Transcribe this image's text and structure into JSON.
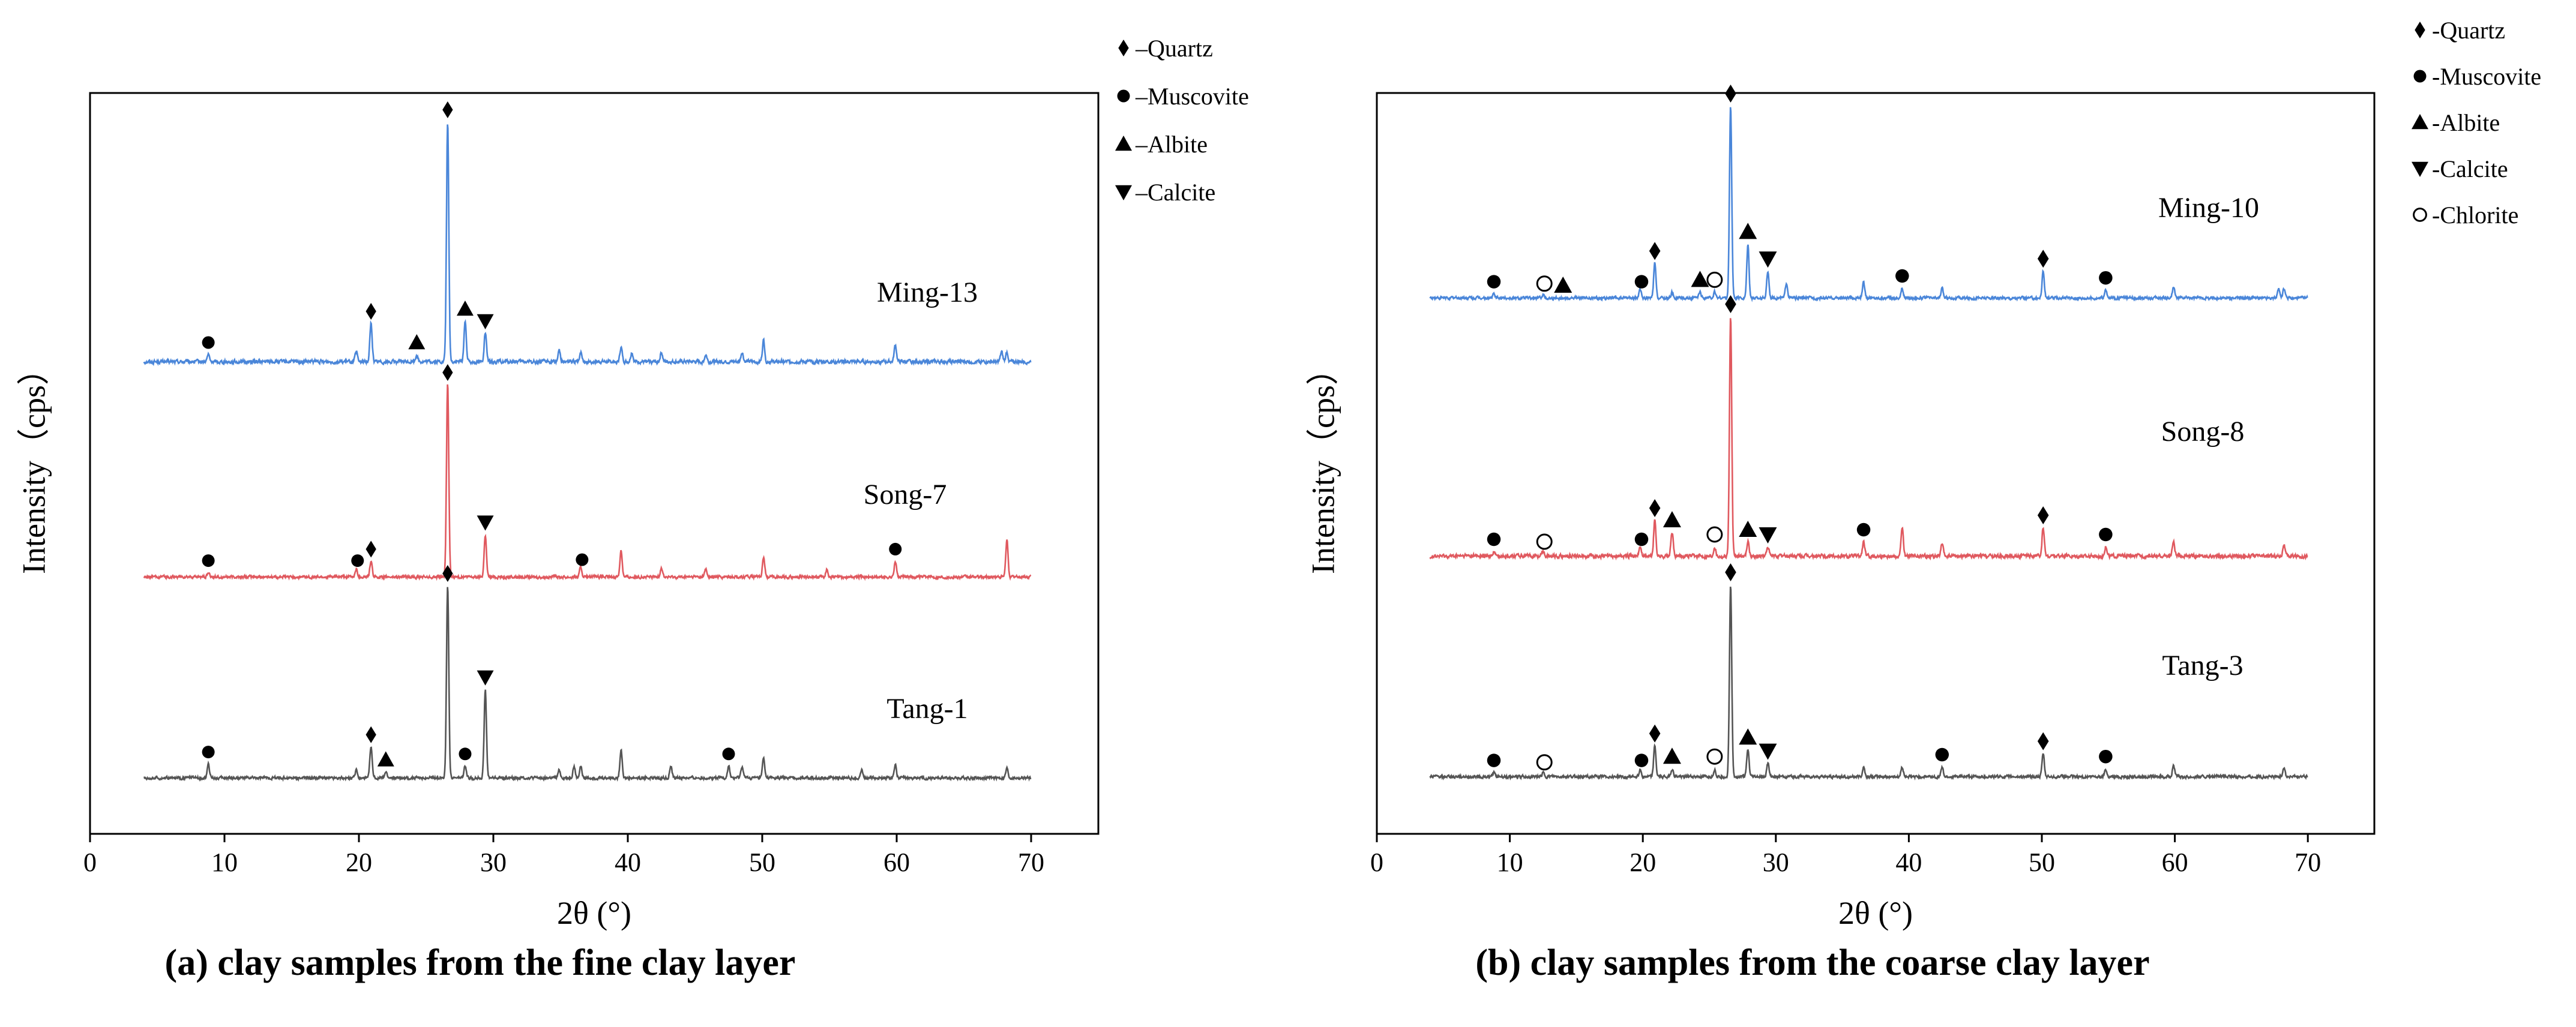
{
  "colors": {
    "series_top": "#4a86d9",
    "series_middle": "#e0595f",
    "series_bottom": "#555555",
    "axis": "#000000"
  },
  "chart_data": [
    {
      "id": "a",
      "type": "line",
      "caption": "(a) clay samples from the fine clay layer",
      "xlabel": "2θ (°)",
      "ylabel": "Intensity（cps）",
      "xlim": [
        0,
        75
      ],
      "xticks": [
        0,
        10,
        20,
        30,
        40,
        50,
        60,
        70
      ],
      "legend": [
        {
          "symbol": "♦",
          "label": "–Quartz",
          "marker": "diamond"
        },
        {
          "symbol": "●",
          "label": "–Muscovite",
          "marker": "circle"
        },
        {
          "symbol": "▲",
          "label": "–Albite",
          "marker": "triangle-up"
        },
        {
          "symbol": "▼",
          "label": "–Calcite",
          "marker": "triangle-down"
        }
      ],
      "series": [
        {
          "name": "Ming-13",
          "color": "#4a86d9",
          "slot": 2,
          "peaks": [
            [
              8.8,
              0.03
            ],
            [
              19.8,
              0.04
            ],
            [
              20.9,
              0.16
            ],
            [
              24.3,
              0.03
            ],
            [
              26.6,
              1.0
            ],
            [
              27.9,
              0.17
            ],
            [
              29.4,
              0.12
            ],
            [
              34.9,
              0.05
            ],
            [
              36.5,
              0.04
            ],
            [
              39.5,
              0.06
            ],
            [
              40.3,
              0.04
            ],
            [
              42.5,
              0.04
            ],
            [
              45.8,
              0.03
            ],
            [
              48.5,
              0.04
            ],
            [
              50.1,
              0.09
            ],
            [
              59.9,
              0.07
            ],
            [
              67.8,
              0.04
            ],
            [
              68.2,
              0.04
            ]
          ],
          "markers": [
            [
              "circle",
              8.8
            ],
            [
              "diamond",
              20.9
            ],
            [
              "triangle-up",
              24.3
            ],
            [
              "diamond",
              26.6
            ],
            [
              "triangle-up",
              27.9
            ],
            [
              "triangle-down",
              29.4
            ]
          ]
        },
        {
          "name": "Song-7",
          "color": "#e0595f",
          "slot": 1,
          "peaks": [
            [
              8.8,
              0.02
            ],
            [
              19.8,
              0.04
            ],
            [
              20.9,
              0.08
            ],
            [
              26.6,
              1.0
            ],
            [
              29.4,
              0.22
            ],
            [
              36.5,
              0.05
            ],
            [
              39.5,
              0.14
            ],
            [
              42.5,
              0.05
            ],
            [
              45.8,
              0.04
            ],
            [
              50.1,
              0.1
            ],
            [
              54.8,
              0.04
            ],
            [
              59.9,
              0.08
            ],
            [
              68.2,
              0.19
            ]
          ],
          "markers": [
            [
              "circle",
              8.8
            ],
            [
              "circle",
              19.9
            ],
            [
              "diamond",
              20.9
            ],
            [
              "diamond",
              26.6
            ],
            [
              "triangle-down",
              29.4
            ],
            [
              "circle",
              36.6
            ],
            [
              "circle",
              59.9
            ]
          ]
        },
        {
          "name": "Tang-1",
          "color": "#555555",
          "slot": 0,
          "peaks": [
            [
              8.8,
              0.07
            ],
            [
              19.8,
              0.04
            ],
            [
              20.9,
              0.16
            ],
            [
              22.0,
              0.03
            ],
            [
              26.6,
              1.0
            ],
            [
              27.9,
              0.06
            ],
            [
              29.4,
              0.46
            ],
            [
              34.9,
              0.04
            ],
            [
              36.0,
              0.06
            ],
            [
              36.5,
              0.06
            ],
            [
              39.5,
              0.15
            ],
            [
              43.2,
              0.06
            ],
            [
              47.5,
              0.06
            ],
            [
              48.5,
              0.06
            ],
            [
              50.1,
              0.1
            ],
            [
              57.4,
              0.04
            ],
            [
              59.9,
              0.07
            ],
            [
              68.2,
              0.05
            ]
          ],
          "markers": [
            [
              "circle",
              8.8
            ],
            [
              "diamond",
              20.9
            ],
            [
              "triangle-up",
              22.0
            ],
            [
              "diamond",
              26.6
            ],
            [
              "circle",
              27.9
            ],
            [
              "triangle-down",
              29.4
            ],
            [
              "circle",
              47.5
            ]
          ]
        }
      ]
    },
    {
      "id": "b",
      "type": "line",
      "caption": "(b) clay samples from the coarse clay layer",
      "xlabel": "2θ (°)",
      "ylabel": "Intensity（cps）",
      "xlim": [
        0,
        75
      ],
      "xticks": [
        0,
        10,
        20,
        30,
        40,
        50,
        60,
        70
      ],
      "legend": [
        {
          "symbol": "♦",
          "label": "-Quartz",
          "marker": "diamond"
        },
        {
          "symbol": "●",
          "label": "-Muscovite",
          "marker": "circle"
        },
        {
          "symbol": "▲",
          "label": "-Albite",
          "marker": "triangle-up"
        },
        {
          "symbol": "▼",
          "label": "-Calcite",
          "marker": "triangle-down"
        },
        {
          "symbol": "○",
          "label": "-Chlorite",
          "marker": "open-circle"
        }
      ],
      "series": [
        {
          "name": "Ming-10",
          "color": "#4a86d9",
          "slot": 2,
          "peaks": [
            [
              8.8,
              0.02
            ],
            [
              12.5,
              0.02
            ],
            [
              19.8,
              0.04
            ],
            [
              20.9,
              0.18
            ],
            [
              22.2,
              0.03
            ],
            [
              24.3,
              0.03
            ],
            [
              25.4,
              0.03
            ],
            [
              26.6,
              1.0
            ],
            [
              27.9,
              0.28
            ],
            [
              29.4,
              0.14
            ],
            [
              30.8,
              0.08
            ],
            [
              36.6,
              0.08
            ],
            [
              39.5,
              0.05
            ],
            [
              42.5,
              0.05
            ],
            [
              50.1,
              0.14
            ],
            [
              54.8,
              0.04
            ],
            [
              59.9,
              0.06
            ],
            [
              67.8,
              0.05
            ],
            [
              68.2,
              0.05
            ]
          ],
          "markers": [
            [
              "circle",
              8.8
            ],
            [
              "open-circle",
              12.6
            ],
            [
              "triangle-up",
              14.0
            ],
            [
              "circle",
              19.9
            ],
            [
              "diamond",
              20.9
            ],
            [
              "triangle-up",
              24.3
            ],
            [
              "open-circle",
              25.4
            ],
            [
              "diamond",
              26.6
            ],
            [
              "triangle-up",
              27.9
            ],
            [
              "triangle-down",
              29.4
            ],
            [
              "circle",
              39.5
            ],
            [
              "diamond",
              50.1
            ],
            [
              "circle",
              54.8
            ]
          ]
        },
        {
          "name": "Song-8",
          "color": "#e0595f",
          "slot": 1,
          "peaks": [
            [
              8.8,
              0.02
            ],
            [
              12.5,
              0.02
            ],
            [
              19.8,
              0.04
            ],
            [
              20.9,
              0.15
            ],
            [
              22.2,
              0.1
            ],
            [
              25.4,
              0.04
            ],
            [
              26.6,
              1.0
            ],
            [
              27.9,
              0.06
            ],
            [
              29.4,
              0.04
            ],
            [
              36.6,
              0.06
            ],
            [
              39.5,
              0.12
            ],
            [
              42.5,
              0.05
            ],
            [
              50.1,
              0.12
            ],
            [
              54.8,
              0.04
            ],
            [
              59.9,
              0.06
            ],
            [
              68.2,
              0.05
            ]
          ],
          "markers": [
            [
              "circle",
              8.8
            ],
            [
              "open-circle",
              12.6
            ],
            [
              "circle",
              19.9
            ],
            [
              "diamond",
              20.9
            ],
            [
              "triangle-up",
              22.2
            ],
            [
              "open-circle",
              25.4
            ],
            [
              "diamond",
              26.6
            ],
            [
              "triangle-up",
              27.9
            ],
            [
              "triangle-down",
              29.4
            ],
            [
              "circle",
              36.6
            ],
            [
              "diamond",
              50.1
            ],
            [
              "circle",
              54.8
            ]
          ]
        },
        {
          "name": "Tang-3",
          "color": "#555555",
          "slot": 0,
          "peaks": [
            [
              8.8,
              0.02
            ],
            [
              12.5,
              0.02
            ],
            [
              19.8,
              0.04
            ],
            [
              20.9,
              0.16
            ],
            [
              22.2,
              0.04
            ],
            [
              25.4,
              0.04
            ],
            [
              26.6,
              1.0
            ],
            [
              27.9,
              0.14
            ],
            [
              29.4,
              0.07
            ],
            [
              36.6,
              0.05
            ],
            [
              39.5,
              0.05
            ],
            [
              42.5,
              0.05
            ],
            [
              50.1,
              0.12
            ],
            [
              54.8,
              0.04
            ],
            [
              59.9,
              0.06
            ],
            [
              68.2,
              0.05
            ]
          ],
          "markers": [
            [
              "circle",
              8.8
            ],
            [
              "open-circle",
              12.6
            ],
            [
              "circle",
              19.9
            ],
            [
              "diamond",
              20.9
            ],
            [
              "triangle-up",
              22.2
            ],
            [
              "open-circle",
              25.4
            ],
            [
              "diamond",
              26.6
            ],
            [
              "triangle-up",
              27.9
            ],
            [
              "triangle-down",
              29.4
            ],
            [
              "circle",
              42.5
            ],
            [
              "diamond",
              50.1
            ],
            [
              "circle",
              54.8
            ]
          ]
        }
      ]
    }
  ]
}
